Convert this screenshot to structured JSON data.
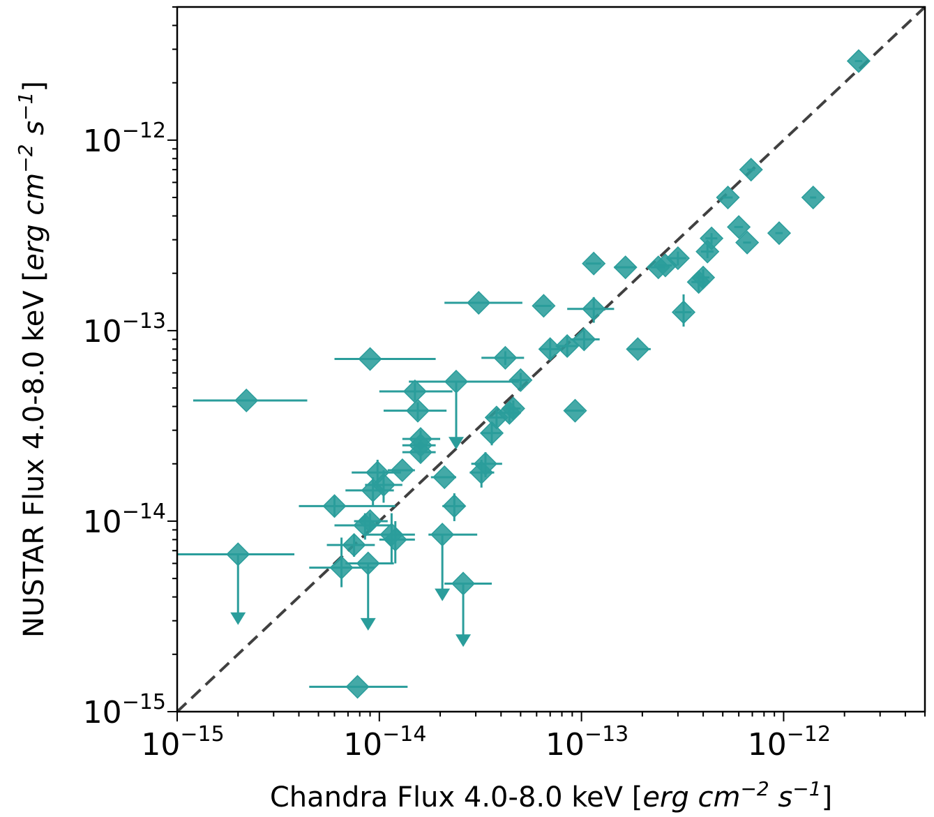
{
  "chart_data": {
    "type": "scatter",
    "x_scale": "log",
    "y_scale": "log",
    "xlim": [
      1e-15,
      5e-12
    ],
    "ylim": [
      1e-15,
      5e-12
    ],
    "x_tick_values": [
      1e-15,
      1e-14,
      1e-13,
      1e-12
    ],
    "y_tick_values": [
      1e-15,
      1e-14,
      1e-13,
      1e-12
    ],
    "x_tick_labels": [
      {
        "base": "10",
        "exp": "−15"
      },
      {
        "base": "10",
        "exp": "−14"
      },
      {
        "base": "10",
        "exp": "−13"
      },
      {
        "base": "10",
        "exp": "−12"
      }
    ],
    "y_tick_labels": [
      {
        "base": "10",
        "exp": "−15"
      },
      {
        "base": "10",
        "exp": "−14"
      },
      {
        "base": "10",
        "exp": "−13"
      },
      {
        "base": "10",
        "exp": "−12"
      }
    ],
    "xlabel": {
      "prefix": "Chandra Flux 4.0-8.0 keV [",
      "erg": "erg cm",
      "exp1": "−2",
      "s": " s",
      "exp2": "−1",
      "suffix": "]"
    },
    "ylabel": {
      "prefix": "NUSTAR Flux 4.0-8.0 keV [",
      "erg": "erg cm",
      "exp1": "−2",
      "s": " s",
      "exp2": "−1",
      "suffix": "]"
    },
    "reference_line": {
      "type": "y=x",
      "style": "dashed",
      "color": "#404040"
    },
    "marker_color": "#2a9d9b",
    "marker": "diamond",
    "grid": false,
    "legend": "none",
    "points": [
      {
        "x": 2.2e-15,
        "y": 4.3e-14,
        "xerr": [
          1e-15,
          2.2e-15
        ],
        "yerr": [
          0,
          0
        ]
      },
      {
        "x": 2e-15,
        "y": 6.7e-15,
        "xerr": [
          1e-15,
          1.8e-15
        ],
        "yerr": [
          0,
          0
        ],
        "upper_limit": true,
        "arrow_to": 3e-15
      },
      {
        "x": 9e-15,
        "y": 7.1e-14,
        "xerr": [
          3e-15,
          1e-14
        ],
        "yerr": [
          0,
          0
        ]
      },
      {
        "x": 7.8e-15,
        "y": 1.35e-15,
        "xerr": [
          3.3e-15,
          6e-15
        ],
        "yerr": [
          0,
          0
        ]
      },
      {
        "x": 6e-15,
        "y": 1.2e-14,
        "xerr": [
          2e-15,
          6e-15
        ],
        "yerr": [
          1.5e-15,
          1.5e-15
        ]
      },
      {
        "x": 6.5e-15,
        "y": 5.7e-15,
        "xerr": [
          2e-15,
          3e-15
        ],
        "yerr": [
          1.2e-15,
          2.5e-15
        ]
      },
      {
        "x": 7.5e-15,
        "y": 7.5e-15,
        "xerr": [
          2e-15,
          2e-15
        ],
        "yerr": [
          1e-15,
          1e-15
        ]
      },
      {
        "x": 8.8e-15,
        "y": 6e-15,
        "xerr": [
          2e-15,
          3e-15
        ],
        "yerr": [
          0,
          0
        ],
        "upper_limit": true,
        "arrow_to": 2.8e-15
      },
      {
        "x": 8.5e-15,
        "y": 9.5e-15,
        "xerr": [
          2.5e-15,
          3e-15
        ],
        "yerr": [
          1.5e-15,
          1.5e-15
        ]
      },
      {
        "x": 9e-15,
        "y": 1e-14,
        "xerr": [
          1.5e-15,
          2e-15
        ],
        "yerr": [
          1e-15,
          1e-15
        ]
      },
      {
        "x": 9.3e-15,
        "y": 1.45e-14,
        "xerr": [
          2.5e-15,
          2.5e-15
        ],
        "yerr": [
          2.5e-15,
          2.5e-15
        ]
      },
      {
        "x": 9.8e-15,
        "y": 1.8e-14,
        "xerr": [
          2.5e-15,
          3e-15
        ],
        "yerr": [
          3e-15,
          3e-15
        ]
      },
      {
        "x": 1.05e-14,
        "y": 1.55e-14,
        "xerr": [
          2e-15,
          2.5e-15
        ],
        "yerr": [
          3e-15,
          3e-15
        ]
      },
      {
        "x": 1.15e-14,
        "y": 8.5e-15,
        "xerr": [
          3e-15,
          3.5e-15
        ],
        "yerr": [
          2.5e-15,
          2.5e-15
        ]
      },
      {
        "x": 1.2e-14,
        "y": 8e-15,
        "xerr": [
          2e-15,
          3e-15
        ],
        "yerr": [
          2e-15,
          2e-15
        ]
      },
      {
        "x": 1.3e-14,
        "y": 1.85e-14,
        "xerr": [
          2e-15,
          2e-15
        ],
        "yerr": [
          0,
          0
        ]
      },
      {
        "x": 1.5e-14,
        "y": 4.8e-14,
        "xerr": [
          5e-15,
          8e-15
        ],
        "yerr": [
          5e-15,
          5e-15
        ]
      },
      {
        "x": 1.55e-14,
        "y": 3.8e-14,
        "xerr": [
          5e-15,
          6e-15
        ],
        "yerr": [
          4e-15,
          4e-15
        ]
      },
      {
        "x": 1.6e-14,
        "y": 2.7e-14,
        "xerr": [
          3e-15,
          4e-15
        ],
        "yerr": [
          3e-15,
          3e-15
        ]
      },
      {
        "x": 1.6e-14,
        "y": 2.5e-14,
        "xerr": [
          3e-15,
          3e-15
        ],
        "yerr": [
          3e-15,
          3e-15
        ]
      },
      {
        "x": 1.6e-14,
        "y": 2.3e-14,
        "xerr": [
          3e-15,
          3e-15
        ],
        "yerr": [
          2.5e-15,
          2.5e-15
        ]
      },
      {
        "x": 2.1e-14,
        "y": 1.7e-14,
        "xerr": [
          3e-15,
          3e-15
        ],
        "yerr": [
          0,
          0
        ]
      },
      {
        "x": 2.05e-14,
        "y": 8.5e-15,
        "xerr": [
          3e-15,
          1e-14
        ],
        "yerr": [
          0,
          0
        ],
        "upper_limit": true,
        "arrow_to": 4e-15
      },
      {
        "x": 2.4e-14,
        "y": 5.4e-14,
        "xerr": [
          1e-14,
          2.5e-14
        ],
        "yerr": [
          0,
          0
        ],
        "upper_limit": true,
        "arrow_to": 2.5e-14
      },
      {
        "x": 2.35e-14,
        "y": 1.2e-14,
        "xerr": [
          3e-15,
          3e-15
        ],
        "yerr": [
          2e-15,
          2e-15
        ]
      },
      {
        "x": 2.6e-14,
        "y": 4.7e-15,
        "xerr": [
          5e-15,
          1e-14
        ],
        "yerr": [
          0,
          0
        ],
        "upper_limit": true,
        "arrow_to": 2.3e-15
      },
      {
        "x": 3.1e-14,
        "y": 1.4e-13,
        "xerr": [
          1e-14,
          2e-14
        ],
        "yerr": [
          0,
          0
        ]
      },
      {
        "x": 3.2e-14,
        "y": 1.8e-14,
        "xerr": [
          4e-15,
          5e-15
        ],
        "yerr": [
          3e-15,
          3e-15
        ]
      },
      {
        "x": 3.35e-14,
        "y": 2e-14,
        "xerr": [
          5e-15,
          7e-15
        ],
        "yerr": [
          3e-15,
          3e-15
        ]
      },
      {
        "x": 3.6e-14,
        "y": 2.9e-14,
        "xerr": [
          4e-15,
          4e-15
        ],
        "yerr": [
          4e-15,
          4e-15
        ]
      },
      {
        "x": 3.8e-14,
        "y": 3.5e-14,
        "xerr": [
          4e-15,
          4e-15
        ],
        "yerr": [
          4e-15,
          4e-15
        ]
      },
      {
        "x": 4.2e-14,
        "y": 7.2e-14,
        "xerr": [
          1e-14,
          1e-14
        ],
        "yerr": [
          6e-15,
          6e-15
        ]
      },
      {
        "x": 4.4e-14,
        "y": 3.7e-14,
        "xerr": [
          6e-15,
          6e-15
        ],
        "yerr": [
          4e-15,
          4e-15
        ]
      },
      {
        "x": 4.6e-14,
        "y": 3.9e-14,
        "xerr": [
          4e-15,
          4e-15
        ],
        "yerr": [
          4e-15,
          4e-15
        ]
      },
      {
        "x": 5e-14,
        "y": 5.5e-14,
        "xerr": [
          5e-15,
          5e-15
        ],
        "yerr": [
          5e-15,
          5e-15
        ]
      },
      {
        "x": 6.5e-14,
        "y": 1.35e-13,
        "xerr": [
          6e-15,
          6e-15
        ],
        "yerr": [
          0,
          0
        ]
      },
      {
        "x": 7e-14,
        "y": 8e-14,
        "xerr": [
          8e-15,
          8e-15
        ],
        "yerr": [
          1e-14,
          1e-14
        ]
      },
      {
        "x": 8.5e-14,
        "y": 8.3e-14,
        "xerr": [
          1e-14,
          1e-14
        ],
        "yerr": [
          1e-14,
          1e-14
        ]
      },
      {
        "x": 9.3e-14,
        "y": 3.8e-14,
        "xerr": [
          1e-14,
          1e-14
        ],
        "yerr": [
          0,
          0
        ]
      },
      {
        "x": 1.03e-13,
        "y": 9e-14,
        "xerr": [
          1.5e-14,
          2e-14
        ],
        "yerr": [
          1e-14,
          1e-14
        ]
      },
      {
        "x": 1.15e-13,
        "y": 1.3e-13,
        "xerr": [
          3e-14,
          3e-14
        ],
        "yerr": [
          2e-14,
          2e-14
        ]
      },
      {
        "x": 1.15e-13,
        "y": 2.25e-13,
        "xerr": [
          1e-14,
          1e-14
        ],
        "yerr": [
          0,
          0
        ]
      },
      {
        "x": 1.65e-13,
        "y": 2.15e-13,
        "xerr": [
          2e-14,
          2e-14
        ],
        "yerr": [
          0,
          0
        ]
      },
      {
        "x": 1.9e-13,
        "y": 8e-14,
        "xerr": [
          2e-14,
          3e-14
        ],
        "yerr": [
          0,
          0
        ]
      },
      {
        "x": 2.4e-13,
        "y": 2.15e-13,
        "xerr": [
          2e-14,
          2e-14
        ],
        "yerr": [
          0,
          0
        ]
      },
      {
        "x": 2.6e-13,
        "y": 2.2e-13,
        "xerr": [
          2e-14,
          2e-14
        ],
        "yerr": [
          0,
          0
        ]
      },
      {
        "x": 3e-13,
        "y": 2.4e-13,
        "xerr": [
          3e-14,
          3e-14
        ],
        "yerr": [
          2e-14,
          2e-14
        ]
      },
      {
        "x": 3.2e-13,
        "y": 1.25e-13,
        "xerr": [
          3e-14,
          3e-14
        ],
        "yerr": [
          2e-14,
          3e-14
        ]
      },
      {
        "x": 3.8e-13,
        "y": 1.8e-13,
        "xerr": [
          3e-14,
          3e-14
        ],
        "yerr": [
          2e-14,
          2e-14
        ]
      },
      {
        "x": 4e-13,
        "y": 1.9e-13,
        "xerr": [
          3e-14,
          3e-14
        ],
        "yerr": [
          2e-14,
          2e-14
        ]
      },
      {
        "x": 4.2e-13,
        "y": 2.6e-13,
        "xerr": [
          3e-14,
          3e-14
        ],
        "yerr": [
          2e-14,
          2e-14
        ]
      },
      {
        "x": 4.4e-13,
        "y": 3.05e-13,
        "xerr": [
          3e-14,
          3e-14
        ],
        "yerr": [
          2e-14,
          2e-14
        ]
      },
      {
        "x": 5.3e-13,
        "y": 5e-13,
        "xerr": [
          3e-14,
          3e-14
        ],
        "yerr": [
          0,
          0
        ]
      },
      {
        "x": 6e-13,
        "y": 3.5e-13,
        "xerr": [
          3e-14,
          3e-14
        ],
        "yerr": [
          0,
          0
        ]
      },
      {
        "x": 6.6e-13,
        "y": 2.9e-13,
        "xerr": [
          3e-14,
          3e-14
        ],
        "yerr": [
          0,
          0
        ]
      },
      {
        "x": 6.9e-13,
        "y": 7e-13,
        "xerr": [
          3e-14,
          3e-14
        ],
        "yerr": [
          0,
          0
        ]
      },
      {
        "x": 9.5e-13,
        "y": 3.25e-13,
        "xerr": [
          4e-14,
          4e-14
        ],
        "yerr": [
          0,
          0
        ]
      },
      {
        "x": 1.4e-12,
        "y": 5e-13,
        "xerr": [
          5e-14,
          5e-14
        ],
        "yerr": [
          0,
          0
        ]
      },
      {
        "x": 2.35e-12,
        "y": 2.6e-12,
        "xerr": [
          1e-13,
          1e-13
        ],
        "yerr": [
          0,
          0
        ]
      }
    ]
  }
}
